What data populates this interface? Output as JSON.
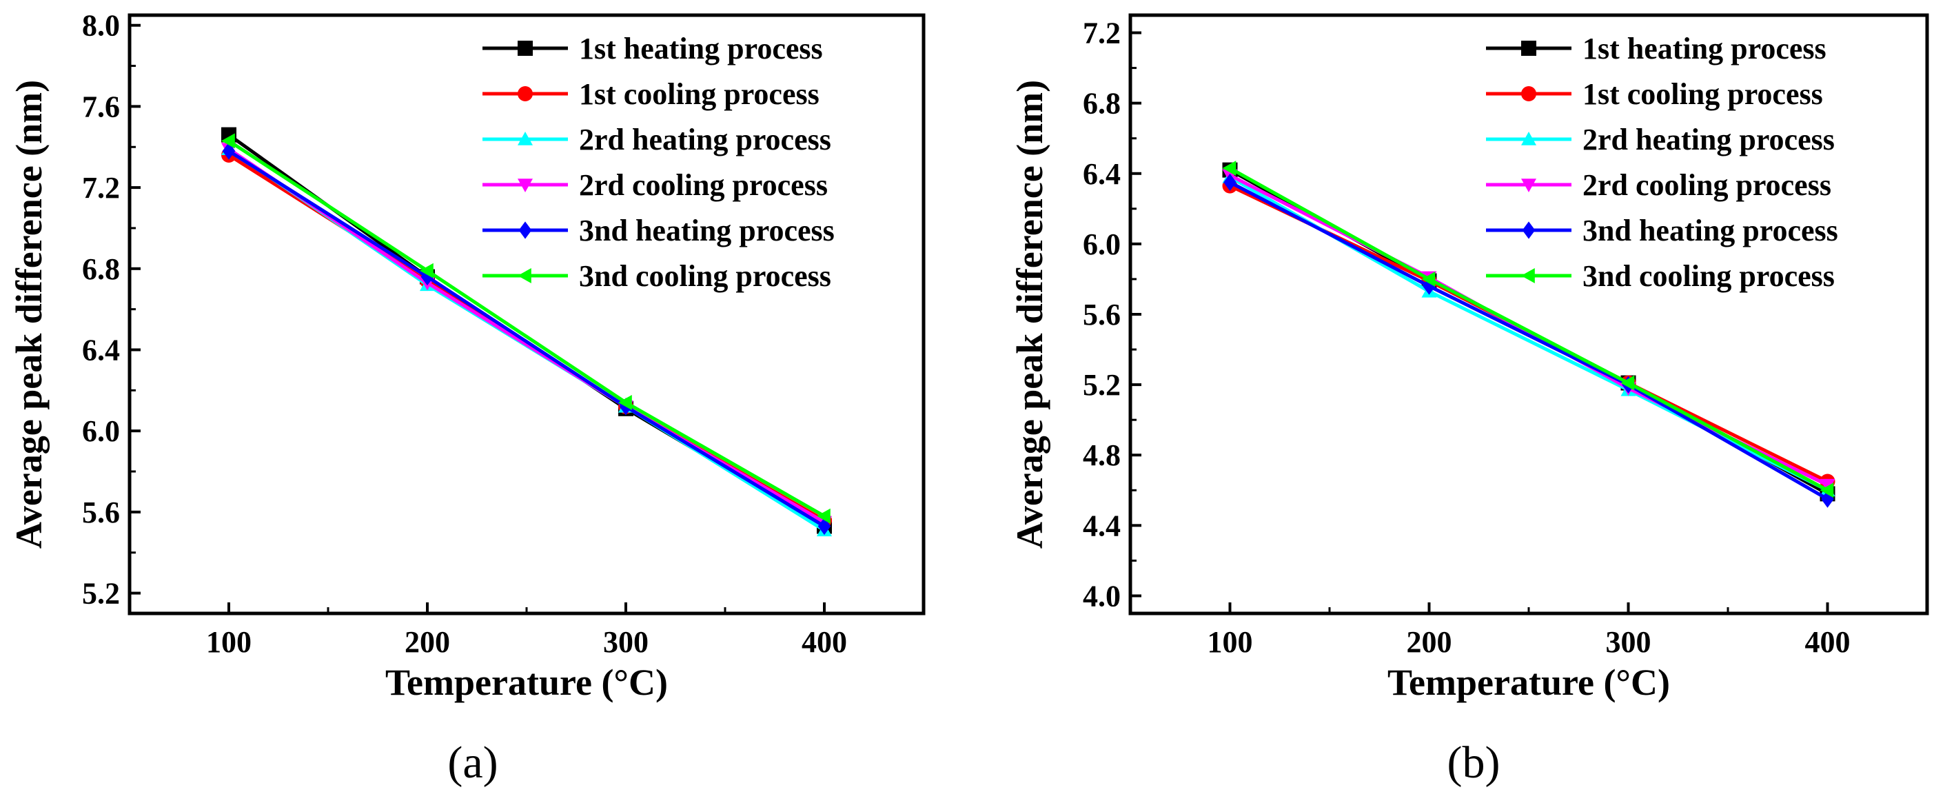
{
  "chart_data": [
    {
      "type": "line",
      "panel_label": "(a)",
      "xlabel": "Temperature (°C)",
      "ylabel": "Average peak difference (nm)",
      "x": [
        100,
        200,
        300,
        400
      ],
      "xlim": [
        50,
        450
      ],
      "ylim": [
        5.1,
        8.05
      ],
      "xticks": [
        100,
        200,
        300,
        400
      ],
      "yticks": [
        5.2,
        5.6,
        6.0,
        6.4,
        6.8,
        7.2,
        7.6,
        8.0
      ],
      "legend_position": "top-right",
      "series": [
        {
          "name": "1st heating process",
          "color": "#000000",
          "marker": "square",
          "values": [
            7.46,
            6.76,
            6.11,
            5.53
          ]
        },
        {
          "name": "1st cooling process",
          "color": "#ff0000",
          "marker": "circle",
          "values": [
            7.36,
            6.74,
            6.12,
            5.56
          ]
        },
        {
          "name": "2rd heating process",
          "color": "#00ffff",
          "marker": "triangle-up",
          "values": [
            7.39,
            6.72,
            6.12,
            5.51
          ]
        },
        {
          "name": "2rd cooling process",
          "color": "#ff00ff",
          "marker": "triangle-down",
          "values": [
            7.39,
            6.73,
            6.12,
            5.55
          ]
        },
        {
          "name": "3nd heating process",
          "color": "#0000ff",
          "marker": "diamond",
          "values": [
            7.38,
            6.76,
            6.12,
            5.53
          ]
        },
        {
          "name": "3nd cooling process",
          "color": "#00ff00",
          "marker": "triangle-left",
          "values": [
            7.43,
            6.79,
            6.14,
            5.58
          ]
        }
      ]
    },
    {
      "type": "line",
      "panel_label": "(b)",
      "xlabel": "Temperature (°C)",
      "ylabel": "Average peak difference (nm)",
      "x": [
        100,
        200,
        300,
        400
      ],
      "xlim": [
        50,
        450
      ],
      "ylim": [
        3.9,
        7.3
      ],
      "xticks": [
        100,
        200,
        300,
        400
      ],
      "yticks": [
        4.0,
        4.4,
        4.8,
        5.2,
        5.6,
        6.0,
        6.4,
        6.8,
        7.2
      ],
      "legend_position": "top-right",
      "series": [
        {
          "name": "1st heating process",
          "color": "#000000",
          "marker": "square",
          "values": [
            6.42,
            5.79,
            5.21,
            4.58
          ]
        },
        {
          "name": "1st cooling process",
          "color": "#ff0000",
          "marker": "circle",
          "values": [
            6.33,
            5.79,
            5.21,
            4.65
          ]
        },
        {
          "name": "2rd heating process",
          "color": "#00ffff",
          "marker": "triangle-up",
          "values": [
            6.38,
            5.73,
            5.17,
            4.6
          ]
        },
        {
          "name": "2rd cooling process",
          "color": "#ff00ff",
          "marker": "triangle-down",
          "values": [
            6.39,
            5.81,
            5.18,
            4.63
          ]
        },
        {
          "name": "3nd heating process",
          "color": "#0000ff",
          "marker": "diamond",
          "values": [
            6.35,
            5.76,
            5.2,
            4.55
          ]
        },
        {
          "name": "3nd cooling process",
          "color": "#00ff00",
          "marker": "triangle-left",
          "values": [
            6.43,
            5.8,
            5.21,
            4.6
          ]
        }
      ]
    }
  ]
}
